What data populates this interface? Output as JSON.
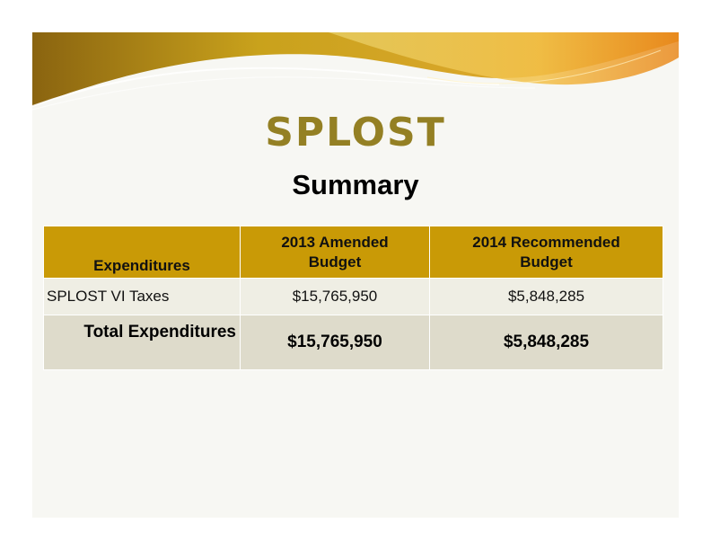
{
  "slide": {
    "title": "SPLOST",
    "subtitle": "Summary"
  },
  "table": {
    "headers": {
      "col0": "Expenditures",
      "col1_line1": "2013 Amended",
      "col1_line2": "Budget",
      "col2_line1": "2014 Recommended",
      "col2_line2": "Budget"
    },
    "rows": [
      {
        "label": "SPLOST VI Taxes",
        "amended_2013": "$15,765,950",
        "recommended_2014": "$5,848,285"
      }
    ],
    "total": {
      "label": "Total Expenditures",
      "amended_2013": "$15,765,950",
      "recommended_2014": "$5,848,285"
    }
  },
  "colors": {
    "title": "#948024",
    "header_bg": "#c99a06",
    "row_bg": "#efeee4",
    "total_bg": "#dedbcb",
    "banner_gold": "#c8a21a",
    "banner_orange": "#e0801a"
  }
}
